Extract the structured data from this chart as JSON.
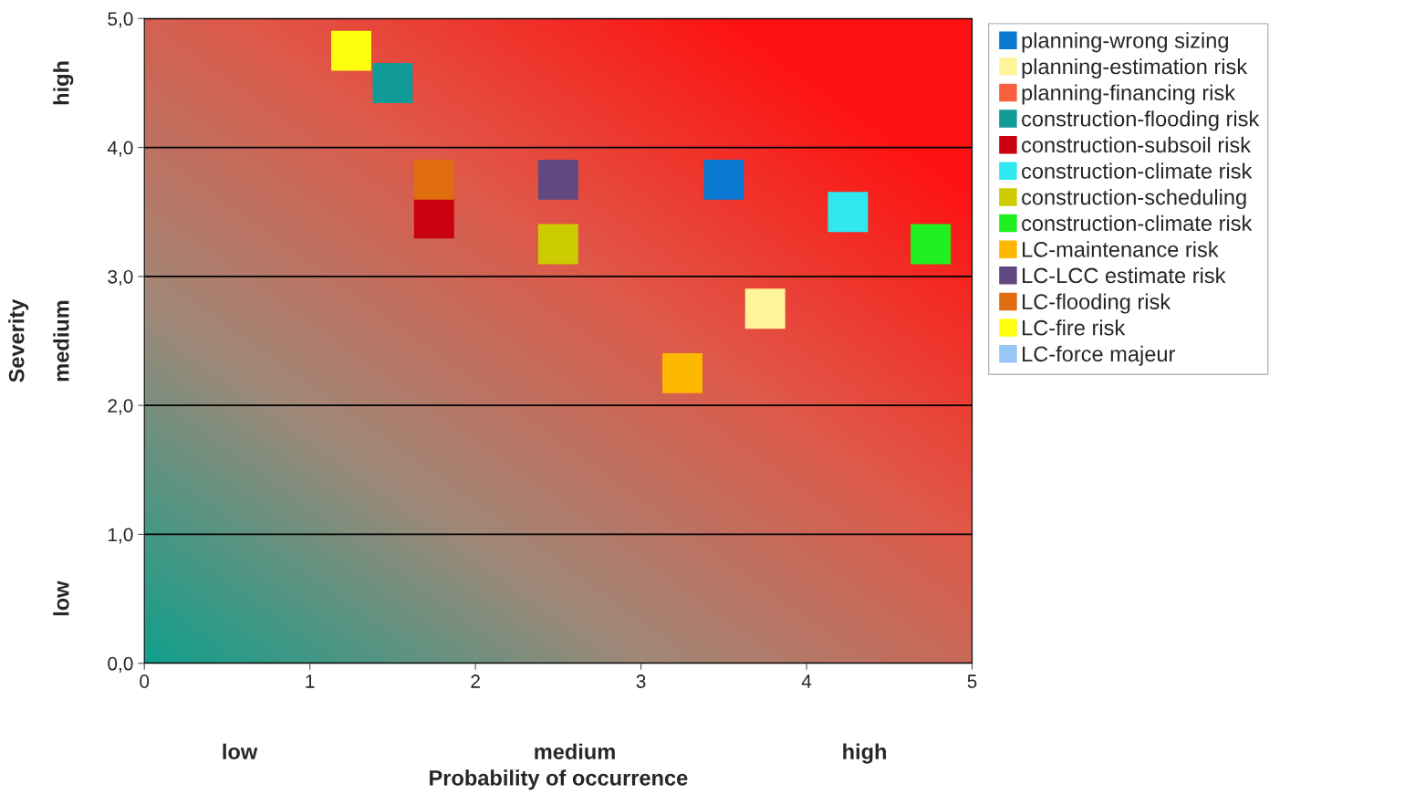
{
  "chart_data": {
    "type": "scatter",
    "xlabel": "Probability of occurrence",
    "ylabel": "Severity",
    "annotations": [
      "low",
      "medium",
      "high",
      "low",
      "medium",
      "high"
    ],
    "xlim": [
      0,
      5
    ],
    "ylim": [
      0,
      5
    ],
    "xticks": [
      0,
      1,
      2,
      3,
      4,
      5
    ],
    "yticks": [
      {
        "value": 0,
        "label": "0,0"
      },
      {
        "value": 1,
        "label": "1,0"
      },
      {
        "value": 2,
        "label": "2,0"
      },
      {
        "value": 3,
        "label": "3,0"
      },
      {
        "value": 4,
        "label": "4,0"
      },
      {
        "value": 5,
        "label": "5,0"
      }
    ],
    "grid": "y",
    "legend": "right",
    "marker": "square",
    "series": [
      {
        "name": "planning-wrong sizing",
        "color": "#0a78d0",
        "x": [
          3.5
        ],
        "values": [
          3.75
        ]
      },
      {
        "name": "planning-estimation risk",
        "color": "#fff49a",
        "x": [
          3.75
        ],
        "values": [
          2.75
        ]
      },
      {
        "name": "planning-financing risk",
        "color": "#f86040",
        "x": [
          null
        ],
        "values": [
          null
        ]
      },
      {
        "name": "construction-flooding risk",
        "color": "#109a98",
        "x": [
          1.5
        ],
        "values": [
          4.5
        ]
      },
      {
        "name": "construction-subsoil risk",
        "color": "#c80010",
        "x": [
          1.75
        ],
        "values": [
          3.45
        ]
      },
      {
        "name": "construction-climate risk",
        "color": "#30e8f0",
        "x": [
          4.25
        ],
        "values": [
          3.5
        ]
      },
      {
        "name": "construction-scheduling",
        "color": "#cccc00",
        "x": [
          2.5
        ],
        "values": [
          3.25
        ]
      },
      {
        "name": "construction-climate risk",
        "color": "#20f020",
        "x": [
          4.75
        ],
        "values": [
          3.25
        ]
      },
      {
        "name": "LC-maintenance risk",
        "color": "#ffb800",
        "x": [
          3.25
        ],
        "values": [
          2.25
        ]
      },
      {
        "name": "LC-LCC estimate risk",
        "color": "#604880",
        "x": [
          2.5
        ],
        "values": [
          3.75
        ]
      },
      {
        "name": "LC-flooding risk",
        "color": "#e06c10",
        "x": [
          1.75
        ],
        "values": [
          3.75
        ]
      },
      {
        "name": "LC-fire risk",
        "color": "#ffff10",
        "x": [
          1.25
        ],
        "values": [
          4.75
        ]
      },
      {
        "name": "LC-force majeur",
        "color": "#99c8f8",
        "x": [
          null
        ],
        "values": [
          null
        ]
      }
    ]
  }
}
